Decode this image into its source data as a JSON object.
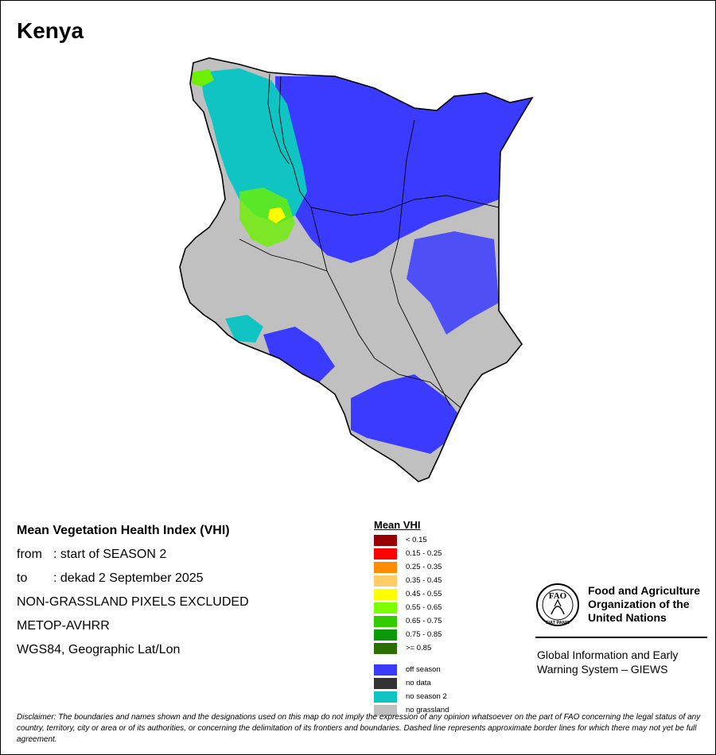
{
  "map": {
    "title": "Kenya",
    "colors": {
      "off_season": "#3b3bff",
      "no_season_2": "#11c4c4",
      "no_grassland": "#c0c0c0",
      "vhi_low_green": "#6cf000",
      "vhi_mid": "#ffff00",
      "border": "#000000"
    }
  },
  "info": {
    "title": "Mean Vegetation Health Index (VHI)",
    "from_key": "from",
    "from_value": ": start of SEASON 2",
    "to_key": "to",
    "to_value": ": dekad 2 September 2025",
    "excluded": "NON-GRASSLAND PIXELS EXCLUDED",
    "sensor": "METOP-AVHRR",
    "projection": "WGS84, Geographic Lat/Lon"
  },
  "legend": {
    "title": "Mean VHI",
    "items": [
      {
        "label": "< 0.15",
        "color": "#990000"
      },
      {
        "label": "0.15 - 0.25",
        "color": "#ff0000"
      },
      {
        "label": "0.25 - 0.35",
        "color": "#ff8c00"
      },
      {
        "label": "0.35 - 0.45",
        "color": "#ffcc66"
      },
      {
        "label": "0.45 - 0.55",
        "color": "#ffff00"
      },
      {
        "label": "0.55 - 0.65",
        "color": "#7cff00"
      },
      {
        "label": "0.65 - 0.75",
        "color": "#33cc00"
      },
      {
        "label": "0.75 - 0.85",
        "color": "#0a9a0a"
      },
      {
        "label": ">= 0.85",
        "color": "#2d6e00"
      }
    ],
    "extras": [
      {
        "label": "off season",
        "color": "#3b3bff"
      },
      {
        "label": "no data",
        "color": "#333333"
      },
      {
        "label": "no season 2",
        "color": "#11c4c4"
      },
      {
        "label": "no grassland",
        "color": "#c0c0c0"
      }
    ]
  },
  "fao": {
    "name_line1": "Food and Agriculture",
    "name_line2": "Organization of the",
    "name_line3": "United Nations",
    "giews_line1": "Global Information and Early",
    "giews_line2": "Warning System – GIEWS",
    "logo_letters": "FAO",
    "logo_motto": "FIAT PANIS"
  },
  "disclaimer": "Disclaimer: The boundaries and names shown and the designations used on this map do not imply the expression of any opinion whatsoever on the part of FAO concerning the legal status of any country, territory, city or area or of its authorities, or concerning the delimitation of its frontiers and boundaries. Dashed line represents approximate border lines for which there may not yet be full agreement."
}
